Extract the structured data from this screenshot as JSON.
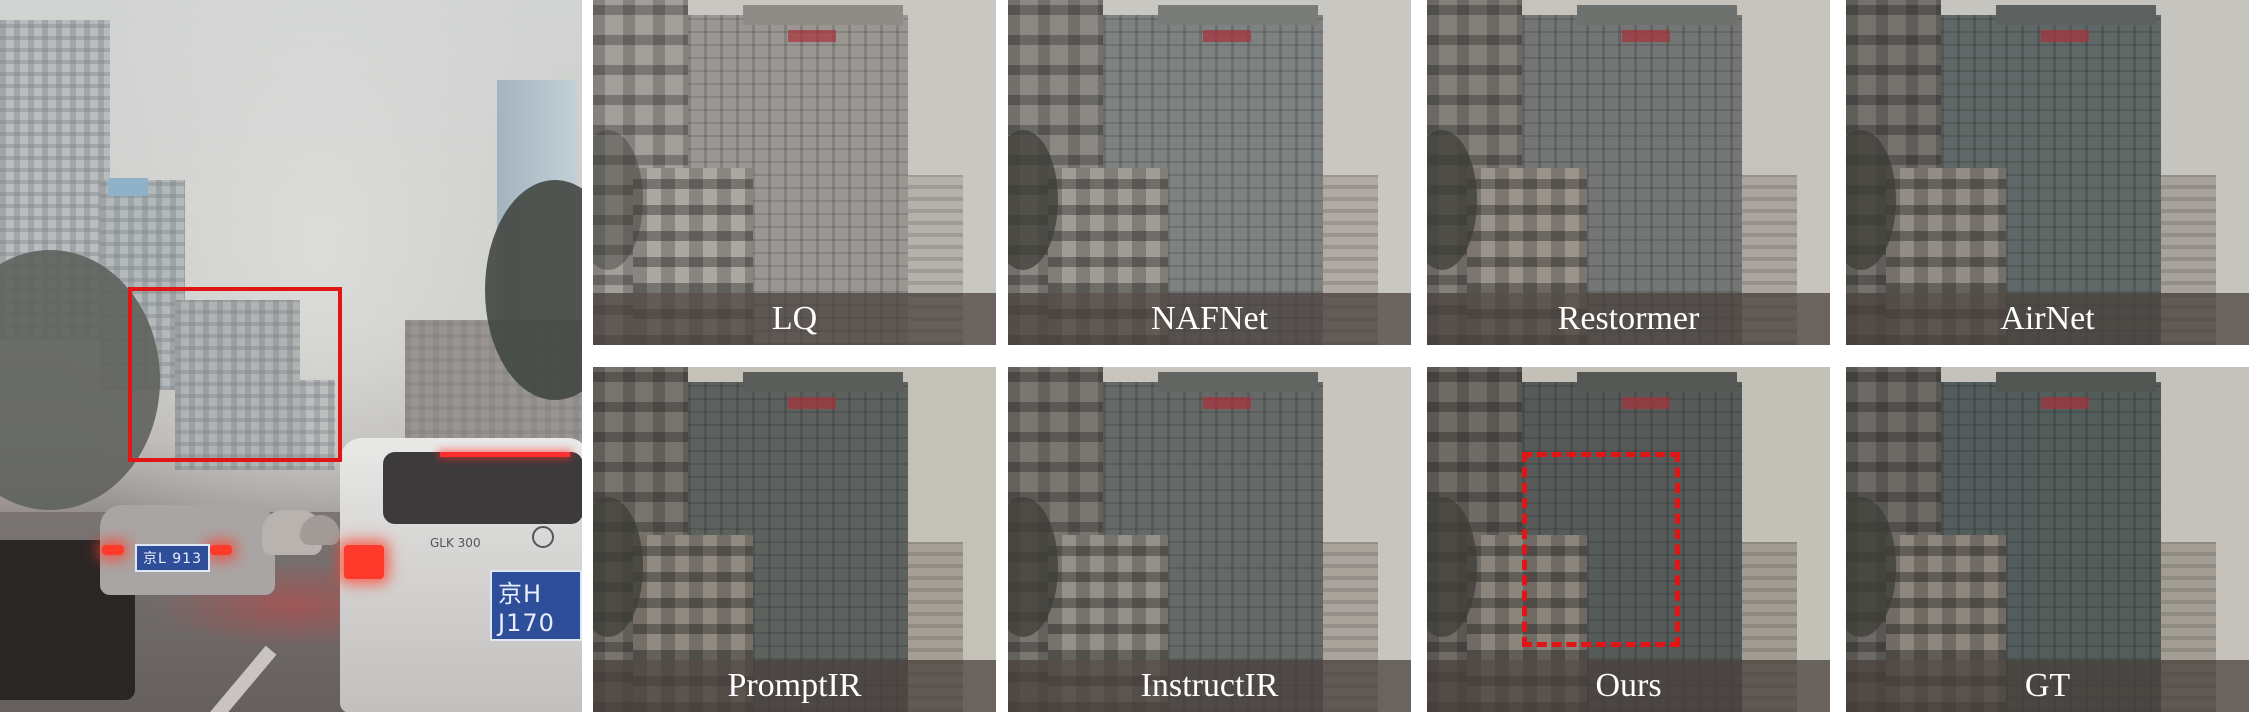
{
  "figure": {
    "main_image": {
      "description_name": "hazy-city-traffic-scene",
      "highlight_box_color": "#e01515",
      "license_plates": [
        "京H J170",
        "京L 913"
      ],
      "car_badge": "GLK 300"
    },
    "tiles": [
      {
        "label": "LQ",
        "sky": "#c9c7c2",
        "tower": "#8e8b87",
        "mid": "#a4a09a",
        "left": "#8a8682"
      },
      {
        "label": "NAFNet",
        "sky": "#c8c7c1",
        "tower": "#737876",
        "mid": "#9a958e",
        "left": "#7d7a75"
      },
      {
        "label": "Restormer",
        "sky": "#c6c3bc",
        "tower": "#6b6e6b",
        "mid": "#938d84",
        "left": "#77736d"
      },
      {
        "label": "AirNet",
        "sky": "#c5c4be",
        "tower": "#596160",
        "mid": "#8c877f",
        "left": "#6c6a66"
      },
      {
        "label": "PromptIR",
        "sky": "#c4c1b9",
        "tower": "#565a57",
        "mid": "#8a847b",
        "left": "#6e6a64"
      },
      {
        "label": "InstructIR",
        "sky": "#c7c5be",
        "tower": "#5e6361",
        "mid": "#8e8981",
        "left": "#72706a"
      },
      {
        "label": "Ours",
        "sky": "#c3c0b8",
        "tower": "#4f5452",
        "mid": "#857f76",
        "left": "#676460",
        "dashed_box": true
      },
      {
        "label": "GT",
        "sky": "#c4c2bb",
        "tower": "#4c5654",
        "mid": "#878278",
        "left": "#66645f"
      }
    ]
  }
}
